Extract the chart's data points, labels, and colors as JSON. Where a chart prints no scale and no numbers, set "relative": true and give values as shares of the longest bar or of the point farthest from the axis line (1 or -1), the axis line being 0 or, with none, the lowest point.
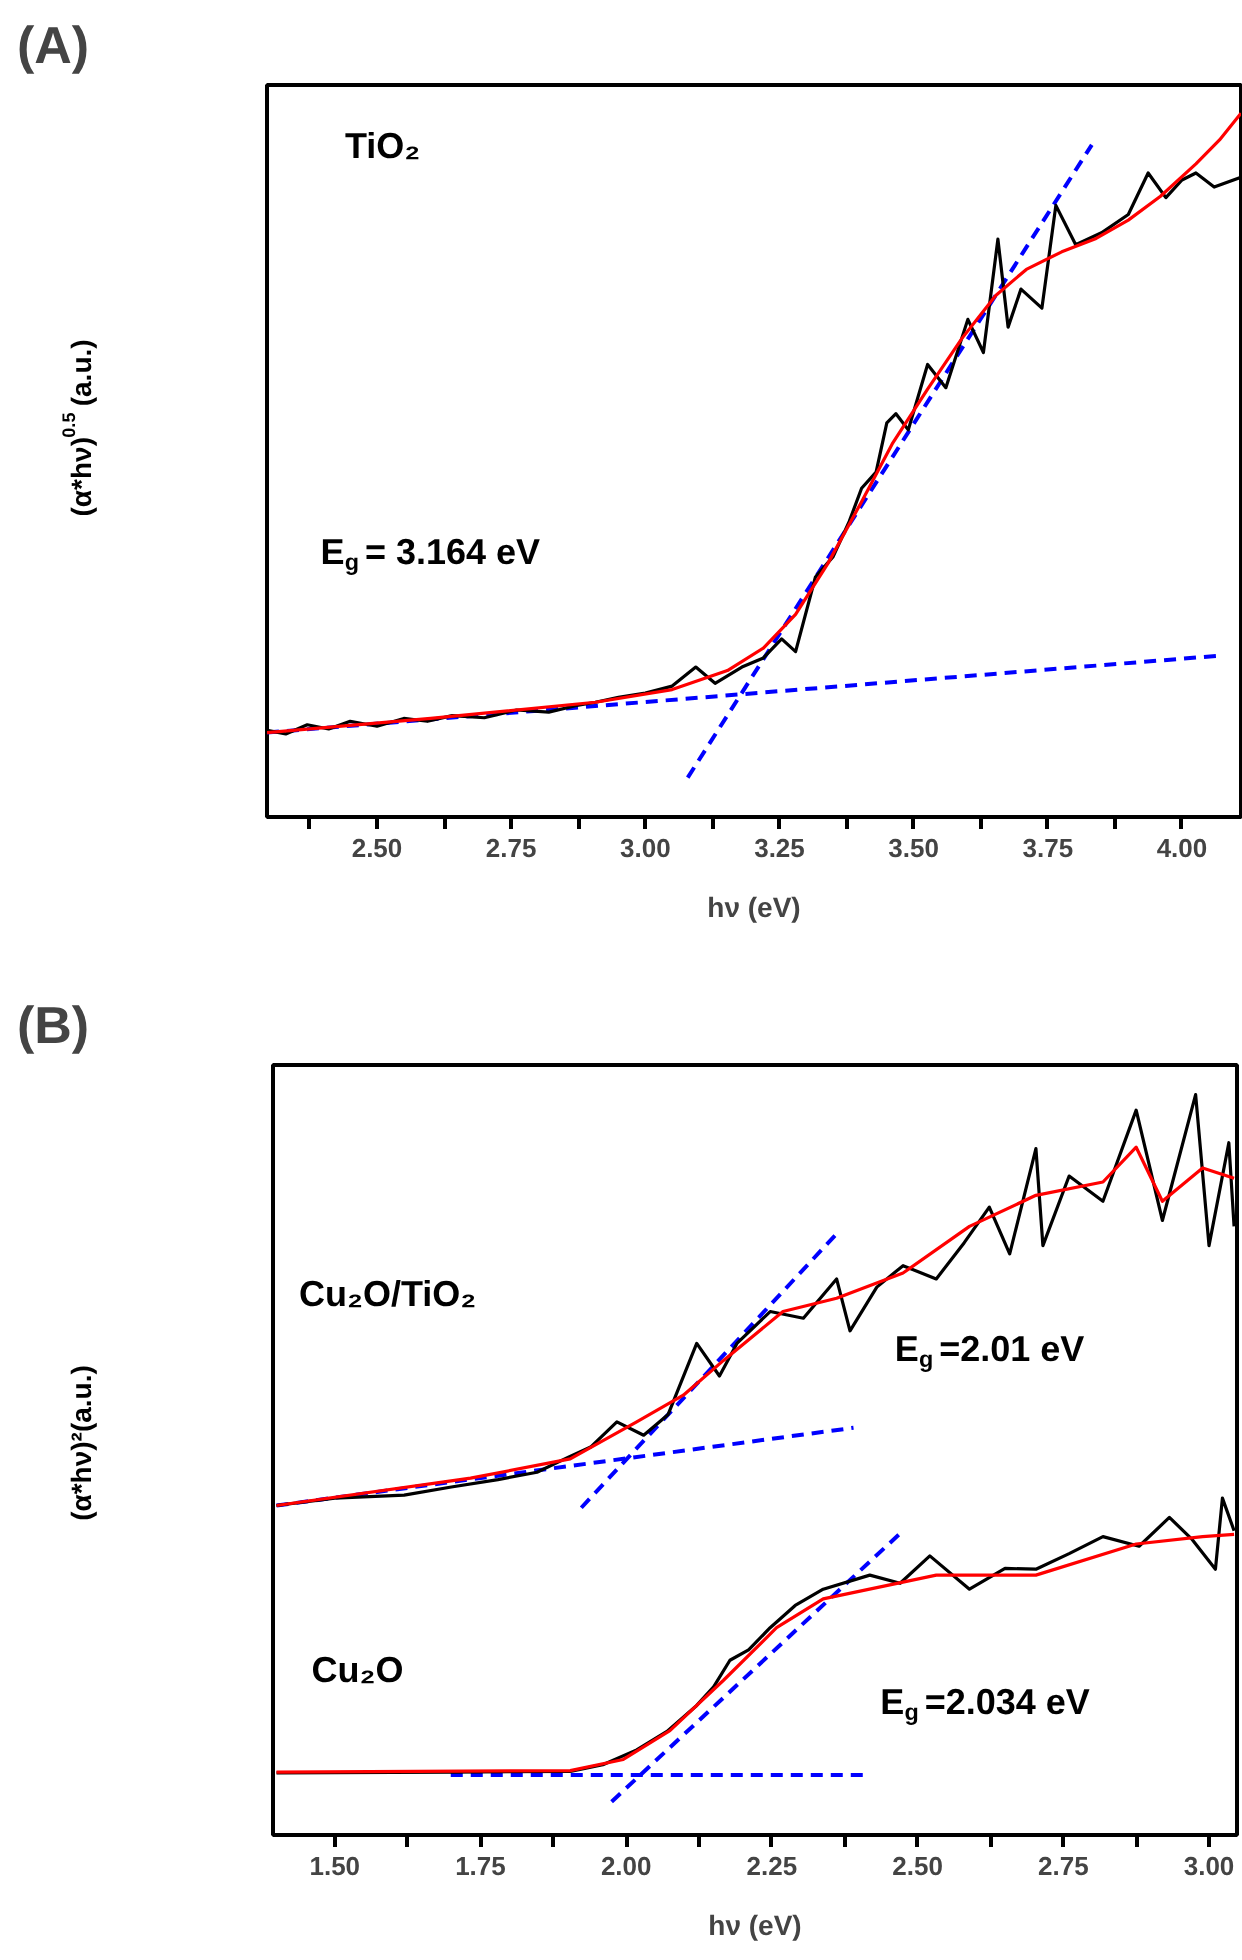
{
  "chart_data": [
    {
      "type": "line",
      "title": "(A)",
      "xlabel": "hν (eV)",
      "ylabel": "(α*hν)$^{0.5}$ (a.u.)",
      "relative": true,
      "xlim": [
        2.295,
        4.11
      ],
      "xticks": [
        {
          "value": 2.375,
          "label": null
        },
        {
          "value": 2.5,
          "label": "2.50"
        },
        {
          "value": 2.625,
          "label": null
        },
        2.75,
        {
          "value": 2.875,
          "label": null
        },
        {
          "value": 3,
          "label": "3.00"
        },
        {
          "value": 3.125,
          "label": null
        },
        3.25,
        {
          "value": 3.375,
          "label": null
        },
        {
          "value": 3.5,
          "label": "3.50"
        },
        {
          "value": 3.625,
          "label": null
        },
        3.75,
        {
          "value": 3.875,
          "label": null
        },
        {
          "value": 4,
          "label": "4.00"
        }
      ],
      "annotations": [
        "TiO₂",
        "E$_{g}$= 3.164 eV"
      ],
      "series": [
        {
          "color": "#000000",
          "x": [
            2.295,
            2.33,
            2.37,
            2.41,
            2.45,
            2.5,
            2.55,
            2.594,
            2.64,
            2.7,
            2.76,
            2.82,
            2.87,
            2.907,
            2.95,
            3.0,
            3.05,
            3.094,
            3.13,
            3.18,
            3.22,
            3.254,
            3.28,
            3.317,
            3.35,
            3.38,
            3.403,
            3.43,
            3.45,
            3.467,
            3.49,
            3.526,
            3.56,
            3.601,
            3.63,
            3.657,
            3.676,
            3.7,
            3.739,
            3.765,
            3.802,
            3.85,
            3.9,
            3.937,
            3.97,
            4.0,
            4.026,
            4.06,
            4.11
          ],
          "values": [
            0.123,
            0.118,
            0.131,
            0.125,
            0.136,
            0.129,
            0.14,
            0.136,
            0.144,
            0.141,
            0.152,
            0.149,
            0.158,
            0.163,
            0.17,
            0.176,
            0.186,
            0.213,
            0.19,
            0.213,
            0.226,
            0.253,
            0.235,
            0.341,
            0.37,
            0.42,
            0.467,
            0.49,
            0.56,
            0.573,
            0.55,
            0.643,
            0.61,
            0.707,
            0.66,
            0.821,
            0.696,
            0.75,
            0.723,
            0.869,
            0.813,
            0.83,
            0.856,
            0.915,
            0.88,
            0.905,
            0.915,
            0.895,
            0.909
          ]
        },
        {
          "color": "#ff0000",
          "x": [
            2.295,
            2.6,
            2.907,
            3.05,
            3.153,
            3.22,
            3.28,
            3.34,
            3.403,
            3.46,
            3.526,
            3.59,
            3.653,
            3.71,
            3.776,
            3.84,
            3.9,
            3.96,
            4.026,
            4.07,
            4.11
          ],
          "values": [
            0.12,
            0.14,
            0.163,
            0.181,
            0.208,
            0.24,
            0.288,
            0.36,
            0.448,
            0.53,
            0.608,
            0.68,
            0.741,
            0.778,
            0.803,
            0.822,
            0.848,
            0.882,
            0.928,
            0.962,
            1.0
          ]
        },
        {
          "color": "#0000ff",
          "line_style": "dashed",
          "x": [
            3.079,
            3.832
          ],
          "values": [
            0.056,
            0.955
          ]
        },
        {
          "color": "#0000ff",
          "line_style": "dashed",
          "x": [
            2.295,
            4.067
          ],
          "values": [
            0.12,
            0.229
          ]
        }
      ]
    },
    {
      "type": "line",
      "title": "(B)",
      "xlabel": "hν (eV)",
      "ylabel": "(α*hν)²(a.u.)",
      "relative": true,
      "xlim": [
        1.394,
        3.048
      ],
      "xticks": [
        {
          "value": 1.5,
          "label": "1.50"
        },
        {
          "value": 1.625,
          "label": null
        },
        1.75,
        {
          "value": 1.875,
          "label": null
        },
        {
          "value": 2,
          "label": "2.00"
        },
        {
          "value": 2.125,
          "label": null
        },
        2.25,
        {
          "value": 2.375,
          "label": null
        },
        {
          "value": 2.5,
          "label": "2.50"
        },
        {
          "value": 2.625,
          "label": null
        },
        2.75,
        {
          "value": 2.875,
          "label": null
        },
        {
          "value": 3,
          "label": "3.00"
        }
      ],
      "annotations": [
        "Cu₂O/TiO₂",
        "E$_{g}$=2.01 eV",
        "Cu₂O",
        "E$_{g}$=2.034 eV"
      ],
      "series": [
        {
          "color": "#000000",
          "x": [
            1.4,
            1.5,
            1.619,
            1.7,
            1.78,
            1.847,
            1.9,
            1.939,
            1.984,
            2.03,
            2.072,
            2.121,
            2.16,
            2.19,
            2.247,
            2.304,
            2.361,
            2.384,
            2.43,
            2.475,
            2.532,
            2.58,
            2.623,
            2.658,
            2.703,
            2.715,
            2.76,
            2.818,
            2.875,
            2.92,
            2.977,
            3.0,
            3.034,
            3.043
          ],
          "values": [
            0.445,
            0.455,
            0.459,
            0.47,
            0.48,
            0.49,
            0.51,
            0.524,
            0.558,
            0.54,
            0.568,
            0.664,
            0.62,
            0.664,
            0.707,
            0.698,
            0.751,
            0.681,
            0.74,
            0.769,
            0.751,
            0.8,
            0.848,
            0.785,
            0.927,
            0.796,
            0.89,
            0.856,
            0.979,
            0.83,
            1.0,
            0.796,
            0.935,
            0.822
          ]
        },
        {
          "color": "#ff0000",
          "x": [
            1.4,
            1.733,
            1.904,
            2.018,
            2.098,
            2.167,
            2.269,
            2.361,
            2.475,
            2.589,
            2.703,
            2.818,
            2.875,
            2.92,
            2.989,
            3.043
          ],
          "values": [
            0.445,
            0.482,
            0.508,
            0.558,
            0.594,
            0.641,
            0.707,
            0.725,
            0.759,
            0.822,
            0.864,
            0.882,
            0.929,
            0.856,
            0.901,
            0.887
          ]
        },
        {
          "color": "#0000ff",
          "line_style": "dashed",
          "x": [
            1.923,
            2.361
          ],
          "values": [
            0.442,
            0.812
          ]
        },
        {
          "color": "#0000ff",
          "line_style": "dashed",
          "x": [
            1.4,
            2.39
          ],
          "values": [
            0.445,
            0.55
          ]
        },
        {
          "color": "#000000",
          "x": [
            1.4,
            1.7,
            1.904,
            1.96,
            2.018,
            2.07,
            2.121,
            2.15,
            2.178,
            2.21,
            2.247,
            2.29,
            2.338,
            2.418,
            2.47,
            2.521,
            2.589,
            2.65,
            2.703,
            2.76,
            2.818,
            2.88,
            2.932,
            2.97,
            3.011,
            3.023,
            3.043
          ],
          "values": [
            0.084,
            0.085,
            0.086,
            0.095,
            0.115,
            0.14,
            0.175,
            0.2,
            0.236,
            0.25,
            0.28,
            0.31,
            0.332,
            0.351,
            0.34,
            0.377,
            0.332,
            0.36,
            0.359,
            0.38,
            0.403,
            0.39,
            0.429,
            0.4,
            0.359,
            0.455,
            0.411
          ]
        },
        {
          "color": "#ff0000",
          "x": [
            1.4,
            1.904,
            1.995,
            2.075,
            2.167,
            2.258,
            2.338,
            2.532,
            2.703,
            2.875,
            2.989,
            3.043
          ],
          "values": [
            0.085,
            0.087,
            0.102,
            0.141,
            0.209,
            0.28,
            0.319,
            0.351,
            0.351,
            0.393,
            0.403,
            0.406
          ]
        },
        {
          "color": "#0000ff",
          "line_style": "dashed",
          "x": [
            1.975,
            2.475
          ],
          "values": [
            0.045,
            0.411
          ]
        },
        {
          "color": "#0000ff",
          "line_style": "dashed",
          "x": [
            1.699,
            2.418
          ],
          "values": [
            0.081,
            0.081
          ]
        }
      ]
    }
  ]
}
